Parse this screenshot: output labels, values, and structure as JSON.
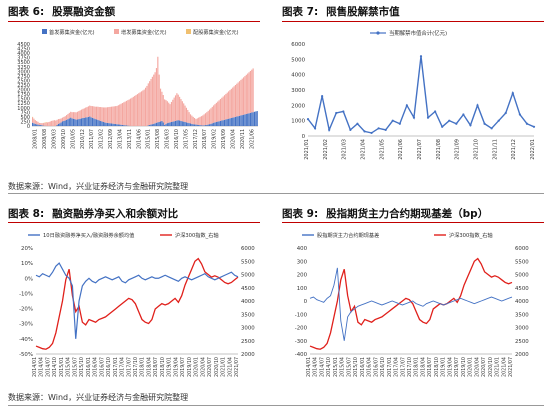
{
  "figures": [
    {
      "label": "图表 6:",
      "title": "股票融资金额"
    },
    {
      "label": "图表 7:",
      "title": "限售股解禁市值"
    },
    {
      "label": "图表 8:",
      "title": "融资融券净买入和余额对比"
    },
    {
      "label": "图表 9:",
      "title": "股指期货主力合约期现基差（bp）"
    }
  ],
  "source_text": "数据来源：Wind，兴业证券经济与金融研究院整理",
  "colors": {
    "title_rule": "#c00000",
    "blue": "#4472c4",
    "pink": "#f4a7a0",
    "orange": "#f0c070",
    "red": "#e0201b"
  },
  "chart_data": [
    {
      "type": "bar",
      "title": "",
      "legend": [
        "首发募集资金(亿元)",
        "增发募集资金(亿元)",
        "配股募集资金(亿元)"
      ],
      "legend_position": "top",
      "ylim": [
        0,
        4500
      ],
      "yticks": [
        0,
        250,
        500,
        750,
        1000,
        1250,
        1500,
        1750,
        2000,
        2250,
        2500,
        2750,
        3000,
        3250,
        3500,
        3750,
        4000,
        4250,
        4500
      ],
      "xticks": [
        "2008/01",
        "2008/08",
        "2009/03",
        "2009/10",
        "2010/05",
        "2010/12",
        "2011/07",
        "2012/02",
        "2012/09",
        "2013/04",
        "2013/11",
        "2014/06",
        "2015/01",
        "2015/08",
        "2016/03",
        "2016/10",
        "2017/05",
        "2017/12",
        "2018/07",
        "2019/02",
        "2019/09",
        "2020/04",
        "2020/11",
        "2021/06"
      ],
      "series": [
        {
          "name": "首发募集资金(亿元)",
          "values": [
            180,
            150,
            120,
            90,
            80,
            50,
            60,
            40,
            20,
            10,
            5,
            0,
            0,
            0,
            0,
            0,
            0,
            0,
            60,
            120,
            150,
            200,
            260,
            280,
            300,
            340,
            380,
            420,
            460,
            420,
            400,
            380,
            350,
            360,
            380,
            400,
            420,
            440,
            450,
            470,
            480,
            500,
            520,
            480,
            450,
            420,
            380,
            360,
            340,
            300,
            280,
            250,
            220,
            200,
            180,
            170,
            160,
            150,
            140,
            130,
            120,
            110,
            100,
            90,
            80,
            70,
            60,
            50,
            40,
            30,
            20,
            10,
            5,
            0,
            0,
            0,
            0,
            0,
            0,
            0,
            0,
            0,
            0,
            0,
            0,
            40,
            60,
            80,
            100,
            120,
            150,
            180,
            200,
            220,
            250,
            280,
            200,
            60,
            120,
            160,
            180,
            200,
            220,
            240,
            260,
            280,
            300,
            320,
            300,
            280,
            260,
            240,
            220,
            200,
            180,
            160,
            140,
            120,
            100,
            90,
            80,
            70,
            60,
            50,
            40,
            30,
            40,
            50,
            60,
            80,
            100,
            120,
            150,
            180,
            200,
            220,
            240,
            260,
            280,
            300,
            320,
            340,
            360,
            380,
            400,
            420,
            440,
            460,
            480,
            500,
            520,
            540,
            560,
            580,
            600,
            620,
            640,
            660,
            680,
            700,
            720,
            740,
            760,
            780,
            800,
            820
          ]
        },
        {
          "name": "增发募集资金(亿元)",
          "values": [
            300,
            250,
            200,
            180,
            150,
            120,
            100,
            120,
            140,
            160,
            180,
            200,
            220,
            250,
            280,
            300,
            320,
            300,
            280,
            260,
            240,
            220,
            200,
            220,
            240,
            260,
            280,
            300,
            320,
            340,
            360,
            380,
            400,
            420,
            440,
            460,
            480,
            500,
            520,
            540,
            560,
            580,
            600,
            620,
            640,
            660,
            680,
            700,
            720,
            740,
            760,
            780,
            800,
            820,
            840,
            860,
            880,
            900,
            920,
            940,
            960,
            980,
            1000,
            1050,
            1100,
            1150,
            1200,
            1250,
            1300,
            1350,
            1400,
            1450,
            1500,
            1550,
            1600,
            1650,
            1700,
            1750,
            1800,
            1850,
            1900,
            1950,
            2000,
            2100,
            2200,
            2300,
            2400,
            2500,
            2600,
            2700,
            2800,
            3000,
            3600,
            2600,
            1800,
            1600,
            1500,
            1400,
            1300,
            1200,
            1100,
            1000,
            1100,
            1200,
            1300,
            1400,
            1500,
            1400,
            1300,
            1200,
            1100,
            1000,
            900,
            800,
            700,
            600,
            500,
            450,
            400,
            350,
            300,
            350,
            400,
            450,
            500,
            550,
            600,
            650,
            700,
            750,
            800,
            850,
            900,
            950,
            1000,
            1050,
            1100,
            1150,
            1200,
            1250,
            1300,
            1350,
            1400,
            1450,
            1500,
            1550,
            1600,
            1650,
            1700,
            1750,
            1800,
            1850,
            1900,
            1950,
            2000,
            2050,
            2100,
            2150,
            2200,
            2250,
            2300,
            2350,
            2400
          ]
        },
        {
          "name": "配股募集资金(亿元)",
          "values": [
            20,
            10,
            5,
            0,
            0,
            0,
            0,
            0,
            10,
            20,
            30,
            0,
            0,
            0,
            0,
            0,
            0,
            0,
            0,
            0,
            0,
            0,
            0,
            0,
            0,
            0,
            0,
            0,
            0,
            0,
            0,
            0,
            0,
            0,
            0,
            0,
            0,
            0,
            0,
            0,
            0,
            0,
            0,
            0,
            0,
            0,
            0,
            0,
            0,
            0,
            0,
            0,
            0,
            0,
            0,
            0,
            0,
            0,
            0,
            0,
            0,
            0,
            0,
            0,
            0,
            0,
            0,
            0,
            0,
            0,
            0,
            0,
            0,
            0,
            0,
            0,
            0,
            0,
            0,
            0,
            0,
            0,
            0,
            0,
            0,
            0,
            0,
            0,
            0,
            0,
            0,
            0,
            0,
            0,
            0,
            0,
            0,
            0,
            0,
            0,
            0,
            0,
            0,
            0,
            0,
            0,
            0,
            0,
            0,
            0,
            0,
            0,
            0,
            0,
            0,
            0,
            0,
            0,
            0,
            0,
            0,
            0,
            0,
            0,
            0,
            0,
            0,
            0,
            0,
            0,
            0,
            0,
            0,
            0,
            0,
            0,
            0,
            0,
            0,
            0,
            0,
            0,
            0,
            0,
            0,
            0,
            0,
            0,
            0,
            0,
            0,
            0,
            0,
            0,
            0,
            0,
            0,
            0,
            0,
            0,
            0,
            0,
            0,
            0,
            0,
            0,
            0,
            0,
            0,
            0
          ]
        }
      ]
    },
    {
      "type": "line",
      "title": "",
      "legend": [
        "当期解禁市值合计(亿元)"
      ],
      "legend_position": "top",
      "ylim": [
        0,
        6000
      ],
      "yticks": [
        0,
        1000,
        2000,
        3000,
        4000,
        5000,
        6000
      ],
      "x": [
        "2021/01",
        "2021/01",
        "2021/02",
        "2021/02",
        "2021/03",
        "2021/03",
        "2021/03",
        "2021/04",
        "2021/04",
        "2021/05",
        "2021/05",
        "2021/05",
        "2021/06",
        "2021/06",
        "2021/06",
        "2021/07",
        "2021/07",
        "2021/08",
        "2021/08",
        "2021/08",
        "2021/09",
        "2021/09",
        "2021/10",
        "2021/10",
        "2021/10",
        "2021/11",
        "2021/11",
        "2021/11",
        "2021/12",
        "2021/12",
        "2021/12",
        "2021/12",
        "2022/01"
      ],
      "xticks": [
        "2021/01",
        "2021/02",
        "2021/03",
        "2021/04",
        "2021/05",
        "2021/06",
        "2021/07",
        "2021/08",
        "2021/09",
        "2021/10",
        "2021/11",
        "2021/12",
        "2022/01"
      ],
      "series": [
        {
          "name": "当期解禁市值合计(亿元)",
          "values": [
            1100,
            500,
            2600,
            400,
            1500,
            1600,
            400,
            800,
            300,
            200,
            500,
            400,
            1000,
            800,
            2000,
            1200,
            5200,
            1200,
            1600,
            600,
            1000,
            800,
            1400,
            700,
            2000,
            800,
            500,
            1000,
            1500,
            2800,
            1400,
            800,
            600
          ]
        }
      ]
    },
    {
      "type": "line",
      "title": "",
      "legend": [
        "10日融资融券净买入/融资融券余额均值",
        "沪深300指数_右轴"
      ],
      "legend_position": "top",
      "ylim_left": [
        -50,
        20
      ],
      "ylim_right": [
        2000,
        6000
      ],
      "yticks_left": [
        "20%",
        "10%",
        "0%",
        "-10%",
        "-20%",
        "-30%",
        "-40%",
        "-50%"
      ],
      "yticks_right": [
        6000,
        5500,
        5000,
        4500,
        4000,
        3500,
        3000,
        2500,
        2000
      ],
      "xticks": [
        "2014/01",
        "2014/04",
        "2014/07",
        "2014/10",
        "2015/01",
        "2015/04",
        "2015/07",
        "2015/10",
        "2016/01",
        "2016/04",
        "2016/07",
        "2016/10",
        "2017/01",
        "2017/04",
        "2017/07",
        "2017/10",
        "2018/01",
        "2018/04",
        "2018/07",
        "2018/10",
        "2019/01",
        "2019/04",
        "2019/07",
        "2019/10",
        "2020/01",
        "2020/04",
        "2020/07",
        "2020/10",
        "2021/01",
        "2021/04",
        "2021/07"
      ],
      "series": [
        {
          "name": "10日融资融券净买入/融资融券余额均值",
          "values": [
            2,
            1,
            3,
            2,
            1,
            4,
            8,
            10,
            6,
            2,
            0,
            -5,
            -40,
            -15,
            -5,
            -2,
            0,
            -2,
            -3,
            -1,
            0,
            1,
            0,
            -1,
            0,
            1,
            -2,
            -3,
            -1,
            0,
            1,
            2,
            0,
            -1,
            0,
            1,
            0,
            0,
            1,
            2,
            1,
            0,
            -1,
            -2,
            0,
            1,
            0,
            -1,
            0,
            1,
            2,
            3,
            1,
            0,
            -1,
            0,
            1,
            2,
            3,
            4,
            2,
            1
          ]
        },
        {
          "name": "沪深300指数_右轴",
          "values": [
            2300,
            2250,
            2200,
            2180,
            2250,
            2400,
            2800,
            3400,
            4000,
            4800,
            5200,
            4200,
            3600,
            3800,
            3200,
            3100,
            3300,
            3250,
            3200,
            3300,
            3350,
            3400,
            3500,
            3600,
            3700,
            3800,
            3900,
            4000,
            4100,
            4050,
            3900,
            3600,
            3300,
            3200,
            3150,
            3300,
            3700,
            3800,
            3900,
            3850,
            3900,
            4000,
            4100,
            3950,
            4200,
            4600,
            4900,
            5200,
            5500,
            5600,
            5400,
            5100,
            5000,
            4900,
            4950,
            4900,
            4800,
            4700,
            4650,
            4700,
            4800,
            4900
          ]
        }
      ]
    },
    {
      "type": "line",
      "title": "",
      "legend": [
        "股指期货主力合约期现基差",
        "沪深300指数_右轴"
      ],
      "legend_position": "top",
      "ylim_left": [
        -400,
        400
      ],
      "ylim_right": [
        2000,
        6000
      ],
      "yticks_left": [
        400,
        300,
        200,
        100,
        0,
        -100,
        -200,
        -300,
        -400
      ],
      "yticks_right": [
        6000,
        5500,
        5000,
        4500,
        4000,
        3500,
        3000,
        2500,
        2000
      ],
      "xticks": [
        "2014/01",
        "2014/04",
        "2014/07",
        "2014/10",
        "2015/01",
        "2015/04",
        "2015/07",
        "2015/10",
        "2016/01",
        "2016/04",
        "2016/07",
        "2016/10",
        "2017/01",
        "2017/04",
        "2017/07",
        "2017/10",
        "2018/01",
        "2018/04",
        "2018/07",
        "2018/10",
        "2019/01",
        "2019/04",
        "2019/07",
        "2019/10",
        "2020/01",
        "2020/04",
        "2020/07",
        "2020/10",
        "2021/01",
        "2021/04",
        "2021/07"
      ],
      "series": [
        {
          "name": "股指期货主力合约期现基差",
          "values": [
            20,
            30,
            10,
            0,
            -10,
            20,
            40,
            120,
            250,
            -150,
            -300,
            -120,
            -80,
            -60,
            -40,
            -30,
            -20,
            -10,
            0,
            -10,
            -20,
            -30,
            -20,
            -10,
            0,
            -10,
            -20,
            -30,
            -20,
            -10,
            0,
            -20,
            -30,
            -40,
            -20,
            -10,
            0,
            -10,
            -20,
            -30,
            -20,
            -10,
            0,
            10,
            20,
            10,
            0,
            -10,
            -20,
            -10,
            0,
            10,
            20,
            30,
            20,
            10,
            0,
            10,
            20,
            30
          ]
        },
        {
          "name": "沪深300指数_右轴",
          "values": [
            2300,
            2250,
            2200,
            2180,
            2250,
            2400,
            2800,
            3400,
            4000,
            4800,
            5200,
            4200,
            3600,
            3800,
            3200,
            3100,
            3300,
            3250,
            3200,
            3300,
            3350,
            3400,
            3500,
            3600,
            3700,
            3800,
            3900,
            4000,
            4100,
            4050,
            3900,
            3600,
            3300,
            3200,
            3150,
            3300,
            3700,
            3800,
            3900,
            3850,
            3900,
            4000,
            4100,
            3950,
            4200,
            4600,
            4900,
            5200,
            5500,
            5600,
            5400,
            5100,
            5000,
            4900,
            4950,
            4900,
            4800,
            4700,
            4650,
            4700
          ]
        }
      ]
    }
  ]
}
